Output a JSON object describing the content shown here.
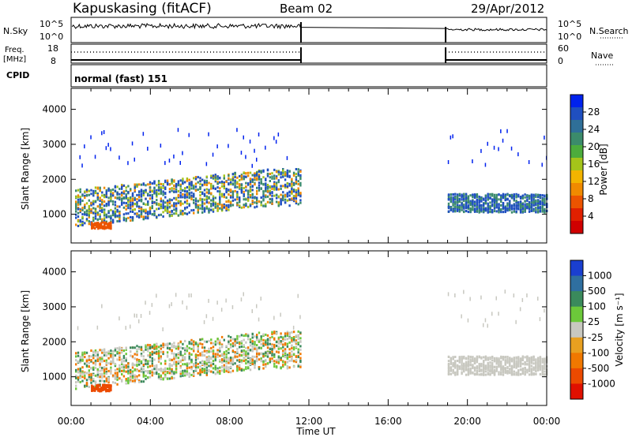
{
  "header": {
    "site": "Kapuskasing (fitACF)",
    "beam": "Beam 02",
    "date": "29/Apr/2012"
  },
  "status_panels": {
    "nsky_label": "N.Sky",
    "nsky_ticks": [
      "10^5",
      "10^0"
    ],
    "nsearch_label": "N.Search",
    "nsearch_ticks": [
      "10^5",
      "10^0"
    ],
    "freq_label_line1": "Freq.",
    "freq_label_line2": "[MHz]",
    "freq_ticks": [
      "18",
      "8"
    ],
    "nave_label": "Nave",
    "nave_ticks": [
      "60",
      "0"
    ],
    "cpid_label": "CPID",
    "cpid_value": "normal (fast) 151"
  },
  "chart_data": [
    {
      "type": "heatmap",
      "panel": "power",
      "ylabel": "Slant Range [km]",
      "y_ticks": [
        1000,
        2000,
        3000,
        4000
      ],
      "ylim": [
        180,
        4600
      ],
      "xlim_hours": [
        0,
        24
      ],
      "colorbar_label": "Power [dB]",
      "colorbar_ticks": [
        "28",
        "24",
        "20",
        "16",
        "12",
        "8",
        "4"
      ],
      "colorbar_colors": [
        "#0022ee",
        "#1f4fc0",
        "#2f6f98",
        "#3b8b6b",
        "#4cac3c",
        "#a4c41a",
        "#f3b400",
        "#f08a00",
        "#ec5400",
        "#e02000",
        "#d00000"
      ],
      "data_gaps_hours": [
        [
          11.6,
          18.9
        ]
      ]
    },
    {
      "type": "heatmap",
      "panel": "velocity",
      "ylabel": "Slant Range [km]",
      "y_ticks": [
        1000,
        2000,
        3000,
        4000
      ],
      "ylim": [
        180,
        4600
      ],
      "xlim_hours": [
        0,
        24
      ],
      "xlabel": "Time UT",
      "x_ticks": [
        "00:00",
        "04:00",
        "08:00",
        "12:00",
        "16:00",
        "20:00",
        "00:00"
      ],
      "colorbar_label": "Velocity [m s⁻¹]",
      "colorbar_ticks": [
        "1000",
        "500",
        "100",
        "25",
        "-25",
        "-100",
        "-500",
        "-1000"
      ],
      "colorbar_colors": [
        "#1a3fd0",
        "#2f6fa0",
        "#3a8a5c",
        "#6cc83a",
        "#c8c8c0",
        "#e8a020",
        "#f07800",
        "#ec4a00",
        "#e01000"
      ],
      "data_gaps_hours": [
        [
          11.6,
          18.9
        ]
      ]
    }
  ]
}
